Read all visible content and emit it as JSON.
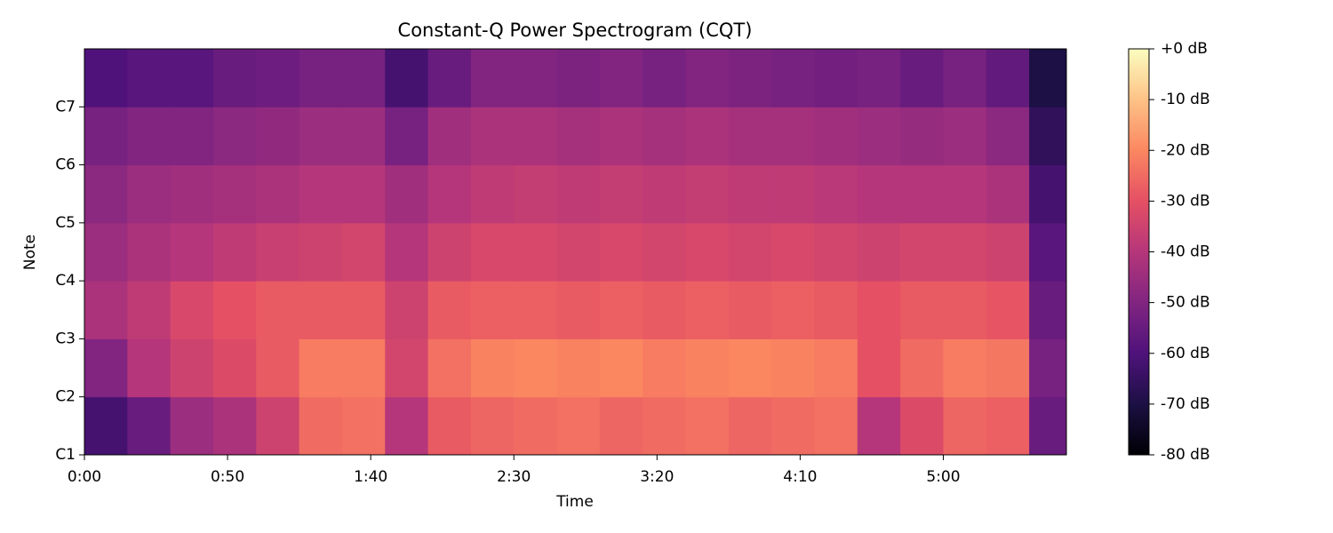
{
  "chart_data": {
    "type": "heatmap",
    "title": "Constant-Q Power Spectrogram (CQT)",
    "x_label": "Time",
    "y_label": "Note",
    "colormap": "magma",
    "xbins": [
      0,
      15,
      30,
      45,
      60,
      75,
      90,
      105,
      120,
      135,
      150,
      165,
      180,
      195,
      210,
      225,
      240,
      255,
      270,
      285,
      300,
      315,
      330,
      343
    ],
    "ybins": [
      24,
      36,
      48,
      60,
      72,
      84,
      96,
      108
    ],
    "values": [
      [
        -62,
        -55,
        -45,
        -42,
        -35,
        -25,
        -24,
        -40,
        -28,
        -26,
        -25,
        -24,
        -26,
        -25,
        -24,
        -26,
        -25,
        -24,
        -40,
        -32,
        -26,
        -27,
        -55
      ],
      [
        -50,
        -40,
        -35,
        -32,
        -28,
        -22,
        -22,
        -34,
        -24,
        -21,
        -20,
        -21,
        -20,
        -22,
        -21,
        -20,
        -21,
        -22,
        -30,
        -25,
        -22,
        -23,
        -52
      ],
      [
        -42,
        -38,
        -33,
        -30,
        -28,
        -28,
        -28,
        -35,
        -28,
        -27,
        -27,
        -28,
        -27,
        -28,
        -27,
        -28,
        -27,
        -28,
        -30,
        -28,
        -28,
        -29,
        -55
      ],
      [
        -45,
        -42,
        -40,
        -38,
        -36,
        -35,
        -34,
        -40,
        -35,
        -33,
        -33,
        -34,
        -33,
        -34,
        -33,
        -34,
        -33,
        -34,
        -35,
        -34,
        -34,
        -35,
        -58
      ],
      [
        -48,
        -45,
        -44,
        -43,
        -42,
        -40,
        -40,
        -44,
        -40,
        -38,
        -37,
        -38,
        -37,
        -38,
        -37,
        -38,
        -38,
        -39,
        -40,
        -40,
        -40,
        -42,
        -62
      ],
      [
        -52,
        -50,
        -50,
        -48,
        -47,
        -45,
        -45,
        -52,
        -44,
        -42,
        -42,
        -43,
        -42,
        -43,
        -42,
        -43,
        -43,
        -44,
        -45,
        -46,
        -45,
        -48,
        -66
      ],
      [
        -60,
        -58,
        -58,
        -55,
        -54,
        -52,
        -52,
        -62,
        -55,
        -50,
        -50,
        -51,
        -50,
        -52,
        -50,
        -51,
        -52,
        -53,
        -52,
        -55,
        -52,
        -56,
        -70
      ]
    ],
    "xlim": [
      0,
      343
    ],
    "xticks": [
      {
        "value": 0,
        "label": "0:00"
      },
      {
        "value": 50,
        "label": "0:50"
      },
      {
        "value": 100,
        "label": "1:40"
      },
      {
        "value": 150,
        "label": "2:30"
      },
      {
        "value": 200,
        "label": "3:20"
      },
      {
        "value": 250,
        "label": "4:10"
      },
      {
        "value": 300,
        "label": "5:00"
      }
    ],
    "ylim": [
      24,
      108
    ],
    "yticks": [
      {
        "value": 24,
        "label": "C1"
      },
      {
        "value": 36,
        "label": "C2"
      },
      {
        "value": 48,
        "label": "C3"
      },
      {
        "value": 60,
        "label": "C4"
      },
      {
        "value": 72,
        "label": "C5"
      },
      {
        "value": 84,
        "label": "C6"
      },
      {
        "value": 96,
        "label": "C7"
      }
    ],
    "clim": [
      -80,
      0
    ],
    "cticks": [
      {
        "value": 0,
        "label": "+0 dB"
      },
      {
        "value": -10,
        "label": "-10 dB"
      },
      {
        "value": -20,
        "label": "-20 dB"
      },
      {
        "value": -30,
        "label": "-30 dB"
      },
      {
        "value": -40,
        "label": "-40 dB"
      },
      {
        "value": -50,
        "label": "-50 dB"
      },
      {
        "value": -60,
        "label": "-60 dB"
      },
      {
        "value": -70,
        "label": "-70 dB"
      },
      {
        "value": -80,
        "label": "-80 dB"
      }
    ]
  }
}
